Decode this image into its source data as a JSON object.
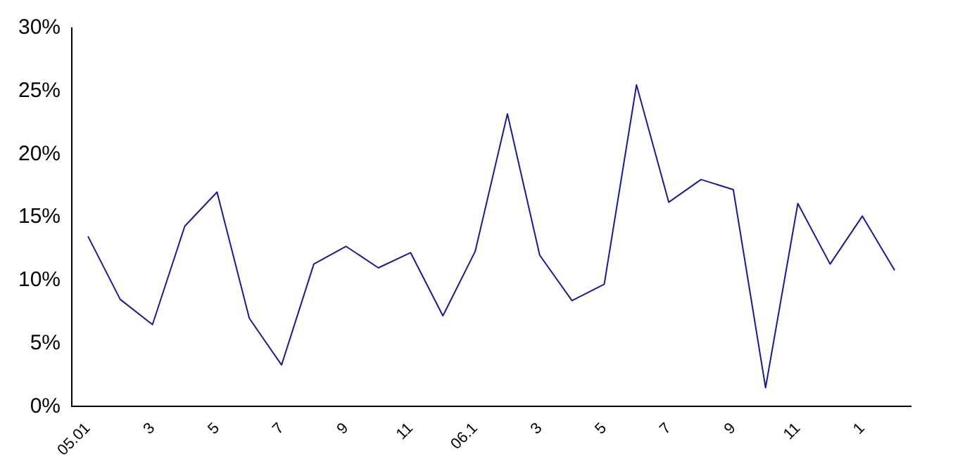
{
  "chart_data": {
    "type": "line",
    "categories": [
      "05.01",
      null,
      "3",
      null,
      "5",
      null,
      "7",
      null,
      "9",
      null,
      "11",
      null,
      "06.1",
      null,
      "3",
      null,
      "5",
      null,
      "7",
      null,
      "9",
      null,
      "11",
      null,
      "1",
      null
    ],
    "series": [
      {
        "color": "#1a1a99",
        "values": [
          13.5,
          8.5,
          6.5,
          14.3,
          17,
          7,
          3.3,
          11.3,
          12.7,
          11,
          12.2,
          7.2,
          12.3,
          23.2,
          12,
          8.4,
          9.7,
          25.5,
          16.2,
          18,
          17.2,
          1.5,
          16.1,
          11.3,
          15.1,
          10.8
        ]
      }
    ],
    "ylim": [
      0,
      30
    ],
    "yticks": [
      {
        "value": 0,
        "label": "0%"
      },
      {
        "value": 5,
        "label": "5%"
      },
      {
        "value": 10,
        "label": "10%"
      },
      {
        "value": 15,
        "label": "15%"
      },
      {
        "value": 20,
        "label": "20%"
      },
      {
        "value": 25,
        "label": "25%"
      },
      {
        "value": 30,
        "label": "30%"
      }
    ],
    "grid": false,
    "legend": false,
    "marker": "none",
    "line_style": "solid"
  }
}
